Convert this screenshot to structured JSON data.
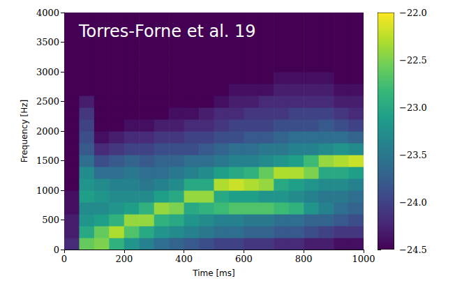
{
  "chart_data": {
    "type": "heatmap",
    "title": "Torres-Forne et al. 19",
    "x_label": "Time [ms]",
    "y_label": "Frequency [Hz]",
    "xlim": [
      0,
      1000
    ],
    "xticks": [
      0,
      200,
      400,
      600,
      800,
      1000
    ],
    "ylim": [
      0,
      4000
    ],
    "yticks": [
      0,
      500,
      1000,
      1500,
      2000,
      2500,
      3000,
      3500,
      4000
    ],
    "x_bins": [
      0,
      50,
      100,
      150,
      200,
      250,
      300,
      350,
      400,
      450,
      500,
      550,
      600,
      650,
      700,
      750,
      800,
      850,
      900,
      950,
      1000
    ],
    "y_bins": [
      0,
      200,
      400,
      600,
      800,
      1000,
      1200,
      1400,
      1600,
      1800,
      2000,
      2200,
      2400,
      2600,
      2800,
      3000,
      3200,
      3400,
      3600,
      3800,
      4000
    ],
    "z": [
      [
        -24.2,
        -24.3,
        -24.3,
        -24.4,
        -24.4,
        -24.5,
        -24.5,
        -24.5,
        -24.5,
        -24.5,
        -24.5,
        -24.5,
        -24.5,
        -24.5,
        -24.5,
        -24.5,
        -24.5,
        -24.5,
        -24.5,
        -24.5
      ],
      [
        -22.6,
        -23.0,
        -23.2,
        -23.3,
        -23.1,
        -23.2,
        -23.3,
        -23.6,
        -23.8,
        -23.9,
        -24.0,
        -24.1,
        -24.3,
        -24.5,
        -24.5,
        -24.5,
        -24.5,
        -24.5,
        -24.5,
        -24.5
      ],
      [
        -22.5,
        -22.6,
        -23.1,
        -23.3,
        -23.2,
        -23.3,
        -23.6,
        -23.9,
        -24.2,
        -24.4,
        -24.5,
        -24.5,
        -24.5,
        -24.5,
        -24.5,
        -24.5,
        -24.5,
        -24.5,
        -24.5,
        -24.5
      ],
      [
        -22.9,
        -22.3,
        -22.9,
        -23.2,
        -23.3,
        -23.4,
        -23.6,
        -23.8,
        -24.1,
        -24.3,
        -24.5,
        -24.5,
        -24.5,
        -24.5,
        -24.5,
        -24.5,
        -24.5,
        -24.5,
        -24.5,
        -24.5
      ],
      [
        -23.2,
        -22.7,
        -22.4,
        -23.1,
        -23.3,
        -23.4,
        -23.5,
        -23.7,
        -24.0,
        -24.2,
        -24.4,
        -24.5,
        -24.5,
        -24.5,
        -24.5,
        -24.5,
        -24.5,
        -24.5,
        -24.5,
        -24.5
      ],
      [
        -23.4,
        -23.0,
        -22.4,
        -22.9,
        -23.3,
        -23.5,
        -23.6,
        -23.8,
        -24.0,
        -24.2,
        -24.4,
        -24.5,
        -24.5,
        -24.5,
        -24.5,
        -24.5,
        -24.5,
        -24.5,
        -24.5,
        -24.5
      ],
      [
        -23.6,
        -23.2,
        -22.9,
        -22.4,
        -23.1,
        -23.4,
        -23.6,
        -23.7,
        -23.9,
        -24.1,
        -24.3,
        -24.5,
        -24.5,
        -24.5,
        -24.5,
        -24.5,
        -24.5,
        -24.5,
        -24.5,
        -24.5
      ],
      [
        -23.7,
        -23.3,
        -23.0,
        -22.5,
        -23.0,
        -23.3,
        -23.5,
        -23.7,
        -23.9,
        -24.1,
        -24.3,
        -24.4,
        -24.5,
        -24.5,
        -24.5,
        -24.5,
        -24.5,
        -24.5,
        -24.5,
        -24.5
      ],
      [
        -23.8,
        -23.4,
        -23.2,
        -23.0,
        -22.4,
        -23.0,
        -23.4,
        -23.6,
        -23.9,
        -24.0,
        -24.2,
        -24.4,
        -24.5,
        -24.5,
        -24.5,
        -24.5,
        -24.5,
        -24.5,
        -24.5,
        -24.5
      ],
      [
        -23.9,
        -23.5,
        -23.3,
        -22.9,
        -22.4,
        -23.0,
        -23.3,
        -23.6,
        -23.8,
        -24.0,
        -24.2,
        -24.3,
        -24.5,
        -24.5,
        -24.5,
        -24.5,
        -24.5,
        -24.5,
        -24.5,
        -24.5
      ],
      [
        -24.0,
        -23.6,
        -23.4,
        -22.8,
        -23.0,
        -22.3,
        -23.1,
        -23.5,
        -23.7,
        -23.9,
        -24.1,
        -24.2,
        -24.4,
        -24.5,
        -24.5,
        -24.5,
        -24.5,
        -24.5,
        -24.5,
        -24.5
      ],
      [
        -24.0,
        -23.6,
        -23.4,
        -22.7,
        -23.1,
        -22.2,
        -23.0,
        -23.4,
        -23.6,
        -23.9,
        -24.0,
        -24.2,
        -24.3,
        -24.4,
        -24.5,
        -24.5,
        -24.5,
        -24.5,
        -24.5,
        -24.5
      ],
      [
        -24.1,
        -23.7,
        -23.5,
        -22.7,
        -23.1,
        -22.3,
        -22.9,
        -23.4,
        -23.6,
        -23.8,
        -24.0,
        -24.1,
        -24.3,
        -24.4,
        -24.5,
        -24.5,
        -24.5,
        -24.5,
        -24.5,
        -24.5
      ],
      [
        -24.1,
        -23.7,
        -23.5,
        -22.7,
        -23.2,
        -22.4,
        -22.6,
        -23.3,
        -23.5,
        -23.8,
        -24.0,
        -24.1,
        -24.2,
        -24.4,
        -24.5,
        -24.5,
        -24.5,
        -24.5,
        -24.5,
        -24.5
      ],
      [
        -24.2,
        -23.8,
        -23.6,
        -22.8,
        -23.2,
        -23.0,
        -22.3,
        -23.2,
        -23.5,
        -23.7,
        -23.9,
        -24.1,
        -24.2,
        -24.3,
        -24.4,
        -24.5,
        -24.5,
        -24.5,
        -24.5,
        -24.5
      ],
      [
        -24.2,
        -23.8,
        -23.6,
        -22.9,
        -23.3,
        -23.1,
        -22.3,
        -23.1,
        -23.4,
        -23.6,
        -23.9,
        -24.0,
        -24.2,
        -24.3,
        -24.4,
        -24.5,
        -24.5,
        -24.5,
        -24.5,
        -24.5
      ],
      [
        -24.3,
        -23.9,
        -23.7,
        -23.2,
        -23.4,
        -23.2,
        -22.5,
        -22.8,
        -23.4,
        -23.6,
        -23.9,
        -24.0,
        -24.2,
        -24.3,
        -24.4,
        -24.5,
        -24.5,
        -24.5,
        -24.5,
        -24.5
      ],
      [
        -24.3,
        -24.0,
        -23.7,
        -23.4,
        -23.5,
        -23.3,
        -23.0,
        -22.4,
        -23.3,
        -23.6,
        -23.8,
        -24.0,
        -24.2,
        -24.3,
        -24.4,
        -24.5,
        -24.5,
        -24.5,
        -24.5,
        -24.5
      ],
      [
        -24.4,
        -24.1,
        -23.8,
        -23.6,
        -23.5,
        -23.3,
        -23.0,
        -22.3,
        -23.2,
        -23.6,
        -23.9,
        -24.1,
        -24.3,
        -24.4,
        -24.5,
        -24.5,
        -24.5,
        -24.5,
        -24.5,
        -24.5
      ],
      [
        -24.4,
        -24.1,
        -23.9,
        -23.7,
        -23.6,
        -23.4,
        -23.1,
        -22.2,
        -23.3,
        -23.7,
        -24.0,
        -24.2,
        -24.3,
        -24.4,
        -24.5,
        -24.5,
        -24.5,
        -24.5,
        -24.5,
        -24.5
      ]
    ],
    "colorbar": {
      "range": [
        -24.5,
        -22
      ],
      "ticks": [
        {
          "value": -24.5,
          "label": "−24.5"
        },
        {
          "value": -24,
          "label": "−24.0"
        },
        {
          "value": -23.5,
          "label": "−23.5"
        },
        {
          "value": -23,
          "label": "−23.0"
        },
        {
          "value": -22.5,
          "label": "−22.5"
        },
        {
          "value": -22,
          "label": "−22.0"
        }
      ]
    }
  }
}
